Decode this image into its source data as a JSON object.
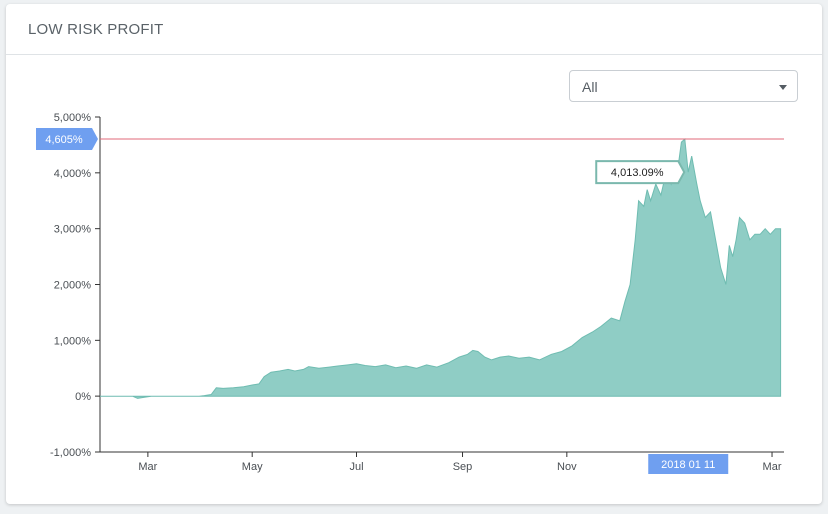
{
  "card": {
    "title": "LOW RISK PROFIT"
  },
  "filter": {
    "selected": "All"
  },
  "colors": {
    "area_fill": "#8fcdc5",
    "area_stroke": "#6fbcb1",
    "max_line": "#e06a78",
    "marker_bg": "#6f9ff0",
    "tooltip_border": "#7ab8ad"
  },
  "chart_data": {
    "type": "area",
    "title": "",
    "xlabel": "",
    "ylabel": "",
    "ylim": [
      -1000,
      5000
    ],
    "y_ticks": [
      "5,000%",
      "4,000%",
      "3,000%",
      "2,000%",
      "1,000%",
      "0%",
      "-1,000%"
    ],
    "y_tick_values": [
      5000,
      4000,
      3000,
      2000,
      1000,
      0,
      -1000
    ],
    "x_tick_labels": [
      "Mar",
      "May",
      "Jul",
      "Sep",
      "Nov",
      "Mar"
    ],
    "x_tick_dates": [
      "2017-03-01",
      "2017-05-01",
      "2017-07-01",
      "2017-09-01",
      "2017-11-01",
      "2018-03-01"
    ],
    "xlim": [
      "2017-02-01",
      "2018-03-08"
    ],
    "grid": false,
    "max_line": {
      "value": 4605,
      "label": "4,605%"
    },
    "crosshair": {
      "date": "2018-01-11",
      "label": "2018 01 11"
    },
    "tooltip": {
      "date": "2018-01-11",
      "value": 4013.09,
      "label": "4,013.09%"
    },
    "series": [
      {
        "x": [
          "2017-02-01",
          "2017-02-10",
          "2017-02-20",
          "2017-02-23",
          "2017-02-27",
          "2017-03-03",
          "2017-03-10",
          "2017-03-17",
          "2017-03-24",
          "2017-03-31",
          "2017-04-03",
          "2017-04-07",
          "2017-04-10",
          "2017-04-14",
          "2017-04-20",
          "2017-04-26",
          "2017-05-01",
          "2017-05-05",
          "2017-05-08",
          "2017-05-12",
          "2017-05-17",
          "2017-05-22",
          "2017-05-26",
          "2017-05-31",
          "2017-06-03",
          "2017-06-09",
          "2017-06-15",
          "2017-06-20",
          "2017-06-26",
          "2017-07-01",
          "2017-07-06",
          "2017-07-12",
          "2017-07-18",
          "2017-07-24",
          "2017-07-30",
          "2017-08-05",
          "2017-08-11",
          "2017-08-17",
          "2017-08-24",
          "2017-08-30",
          "2017-09-04",
          "2017-09-07",
          "2017-09-10",
          "2017-09-14",
          "2017-09-18",
          "2017-09-23",
          "2017-09-28",
          "2017-10-04",
          "2017-10-10",
          "2017-10-16",
          "2017-10-23",
          "2017-10-29",
          "2017-11-04",
          "2017-11-10",
          "2017-11-16",
          "2017-11-21",
          "2017-11-27",
          "2017-12-02",
          "2017-12-05",
          "2017-12-08",
          "2017-12-11",
          "2017-12-13",
          "2017-12-16",
          "2017-12-18",
          "2017-12-20",
          "2017-12-23",
          "2017-12-26",
          "2017-12-29",
          "2018-01-01",
          "2018-01-03",
          "2018-01-05",
          "2018-01-07",
          "2018-01-09",
          "2018-01-11",
          "2018-01-13",
          "2018-01-16",
          "2018-01-18",
          "2018-01-21",
          "2018-01-24",
          "2018-01-27",
          "2018-01-30",
          "2018-02-02",
          "2018-02-04",
          "2018-02-06",
          "2018-02-08",
          "2018-02-10",
          "2018-02-13",
          "2018-02-16",
          "2018-02-19",
          "2018-02-22",
          "2018-02-25",
          "2018-02-28",
          "2018-03-03",
          "2018-03-06"
        ],
        "values": [
          0,
          0,
          0,
          -40,
          -20,
          0,
          0,
          0,
          0,
          0,
          10,
          30,
          150,
          140,
          150,
          170,
          200,
          220,
          350,
          430,
          450,
          480,
          450,
          480,
          530,
          500,
          520,
          540,
          560,
          580,
          550,
          530,
          560,
          510,
          540,
          500,
          560,
          520,
          600,
          700,
          750,
          820,
          800,
          700,
          650,
          700,
          720,
          680,
          700,
          650,
          750,
          800,
          900,
          1050,
          1150,
          1250,
          1400,
          1350,
          1700,
          2000,
          2800,
          3500,
          3400,
          3700,
          3500,
          3800,
          3600,
          4000,
          3800,
          4200,
          4100,
          4550,
          4605,
          4013,
          4300,
          3800,
          3500,
          3200,
          3300,
          2800,
          2300,
          2000,
          2700,
          2500,
          2800,
          3200,
          3100,
          2800,
          2900,
          2900,
          3000,
          2900,
          3000,
          3000
        ]
      }
    ]
  }
}
